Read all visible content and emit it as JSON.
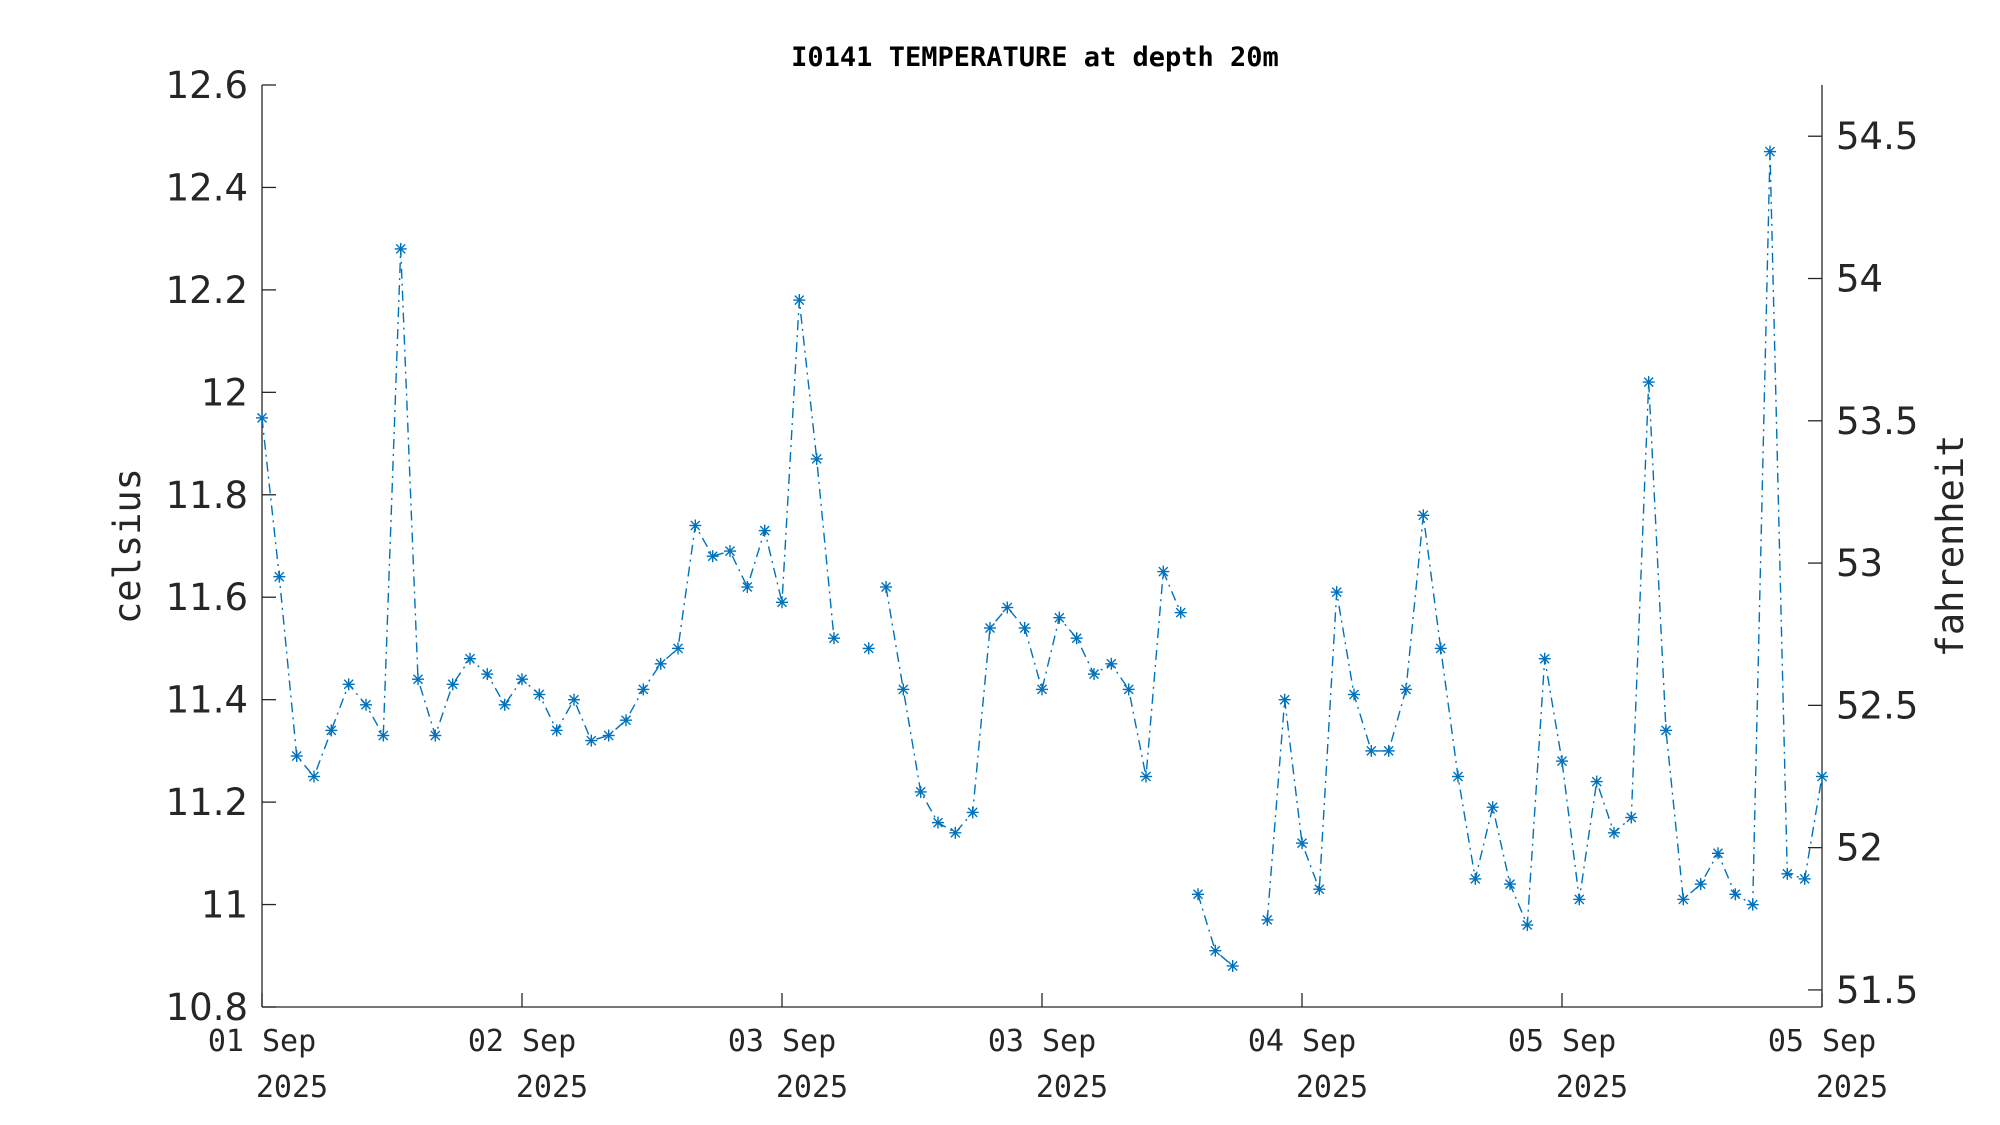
{
  "chart_data": {
    "type": "line",
    "title": "I0141 TEMPERATURE at depth 20m",
    "ylabel": "celsius",
    "ylabel_right": "fahrenheit",
    "ylim": [
      10.8,
      12.6
    ],
    "yticks": [
      "10.8",
      "11",
      "11.2",
      "11.4",
      "11.6",
      "11.8",
      "12",
      "12.2",
      "12.4",
      "12.6"
    ],
    "ylim_right": [
      51.44,
      54.68
    ],
    "yticks_right": [
      "51.5",
      "52",
      "52.5",
      "53",
      "53.5",
      "54",
      "54.5"
    ],
    "xlim": [
      "2025-09-01 00:00",
      "2025-09-05 23:59"
    ],
    "xticks": [
      {
        "day": "01 Sep",
        "year": "2025"
      },
      {
        "day": "02 Sep",
        "year": "2025"
      },
      {
        "day": "03 Sep",
        "year": "2025"
      },
      {
        "day": "03 Sep",
        "year": "2025"
      },
      {
        "day": "04 Sep",
        "year": "2025"
      },
      {
        "day": "05 Sep",
        "year": "2025"
      },
      {
        "day": "05 Sep",
        "year": "2025"
      }
    ],
    "line_style": "dash-dot",
    "marker": "asterisk",
    "grid": false,
    "colors": {
      "series": "#0072BD",
      "axis": "#262626"
    },
    "series": [
      {
        "segments": [
          [
            11.95,
            11.64,
            11.29,
            11.25,
            11.34,
            11.43,
            11.39,
            11.33,
            12.28,
            11.44,
            11.33,
            11.43,
            11.48,
            11.45,
            11.39,
            11.44,
            11.41,
            11.34,
            11.4,
            11.32,
            11.33,
            11.36,
            11.42,
            11.47,
            11.5,
            11.74,
            11.68,
            11.69,
            11.62,
            11.73,
            11.59,
            12.18,
            11.87,
            11.52,
            null,
            11.5
          ],
          [
            11.62,
            11.42,
            11.22,
            11.16,
            11.14,
            11.18,
            11.54,
            11.58,
            11.54,
            11.42,
            11.56,
            11.52,
            11.45,
            11.47,
            11.42,
            11.25,
            11.65,
            11.57
          ],
          [
            11.02,
            10.91,
            10.88,
            null,
            10.97,
            11.4,
            11.12,
            11.03,
            11.61,
            11.41,
            11.3,
            11.3,
            11.42,
            11.76,
            11.5,
            11.25,
            11.05,
            11.19,
            11.04,
            10.96,
            11.48,
            11.28,
            11.01,
            11.24,
            11.14,
            11.17,
            12.02,
            11.34,
            11.01,
            11.04,
            11.1,
            11.02,
            11.0,
            12.47,
            11.06,
            11.05,
            11.25
          ]
        ]
      }
    ]
  }
}
